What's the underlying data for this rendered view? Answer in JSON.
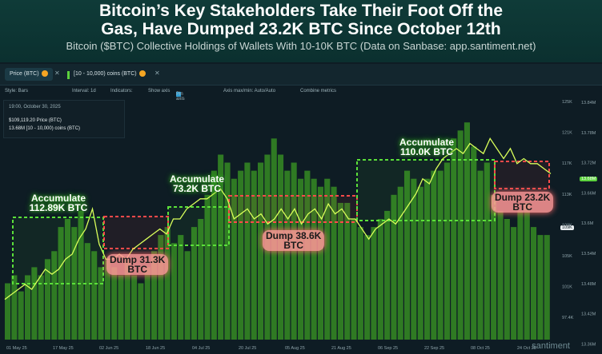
{
  "header": {
    "title_line1": "Bitcoin’s Key Stakeholders Take Their Foot Off the",
    "title_line2": "Gas, Have Dumped 23.2K BTC Since October 12th",
    "subtitle": "Bitcoin ($BTC) Collective Holdings of Wallets With 10-10K BTC (Data on Sanbase: app.santiment.net)"
  },
  "tabs": [
    {
      "label": "Price (BTC)"
    },
    {
      "label": "[10 - 10,000) coins (BTC)"
    }
  ],
  "toolbar": {
    "style": "Style: Bars",
    "interval": "Interval: 1d",
    "indicators": "Indicators:",
    "show_axis": "Show axis",
    "pin_axis": "Pin axis",
    "axis_minmax": "Axis max/min: Auto/Auto",
    "combine": "Combine metrics"
  },
  "infobox": {
    "date": "19:00, October 30, 2025",
    "price": "$109,119.20 Price (BTC)",
    "holdings": "13.68M [10 - 10,000) coins (BTC)"
  },
  "annotations": {
    "acc1": [
      "Accumulate",
      "112.89K BTC"
    ],
    "dump1": [
      "Dump 31.3K",
      "BTC"
    ],
    "acc2": [
      "Accumulate",
      "73.2K BTC"
    ],
    "dump2": [
      "Dump 38.6K",
      "BTC"
    ],
    "acc3": [
      "Accumulate",
      "110.0K BTC"
    ],
    "dump3": [
      "Dump 23.2K",
      "BTC"
    ]
  },
  "watermark": "santiment",
  "colors": {
    "bars": "#2f7a23",
    "line": "#d9ff5a",
    "accumulate_box": "#5be03a",
    "dump_box": "#ff4a4a",
    "holdings_badge": "#5bd13d",
    "price_badge": "#e8edef"
  },
  "chart_data": {
    "type": "bar",
    "x_ticks": [
      "01 May 25",
      "17 May 25",
      "02 Jun 25",
      "18 Jun 25",
      "04 Jul 25",
      "20 Jul 25",
      "05 Aug 25",
      "21 Aug 25",
      "06 Sep 25",
      "22 Sep 25",
      "08 Oct 25",
      "24 Oct 25"
    ],
    "left_ticks": [
      "125K",
      "121K",
      "117K",
      "113K",
      "109K",
      "105K",
      "101K",
      "97.4K"
    ],
    "right_ticks": [
      "13.84M",
      "13.78M",
      "13.72M",
      "13.66M",
      "13.6M",
      "13.54M",
      "13.48M",
      "13.42M",
      "13.36M"
    ],
    "price_badge": "109K",
    "holdings_badge": "13.68M",
    "holdings_line": [
      13.44,
      13.45,
      13.46,
      13.47,
      13.46,
      13.48,
      13.5,
      13.49,
      13.5,
      13.52,
      13.53,
      13.56,
      13.58,
      13.62,
      13.55,
      13.52,
      13.52,
      13.53,
      13.52,
      13.54,
      13.55,
      13.56,
      13.57,
      13.58,
      13.57,
      13.6,
      13.6,
      13.62,
      13.63,
      13.64,
      13.64,
      13.65,
      13.66,
      13.64,
      13.6,
      13.61,
      13.62,
      13.6,
      13.61,
      13.59,
      13.6,
      13.62,
      13.6,
      13.62,
      13.59,
      13.61,
      13.62,
      13.6,
      13.63,
      13.61,
      13.62,
      13.6,
      13.6,
      13.58,
      13.56,
      13.58,
      13.59,
      13.6,
      13.59,
      13.61,
      13.63,
      13.65,
      13.68,
      13.67,
      13.7,
      13.72,
      13.73,
      13.74,
      13.73,
      13.75,
      13.74,
      13.73,
      13.76,
      13.74,
      13.72,
      13.74,
      13.71,
      13.72,
      13.71,
      13.71,
      13.7,
      13.69
    ],
    "bar_values": [
      103,
      104,
      102,
      104,
      105,
      104,
      106,
      107,
      110,
      111,
      110,
      112,
      108,
      107,
      105,
      106,
      105,
      104,
      106,
      104,
      103,
      105,
      107,
      109,
      110,
      108,
      109,
      107,
      110,
      111,
      114,
      117,
      119,
      118,
      116,
      117,
      118,
      117,
      118,
      119,
      121,
      119,
      117,
      118,
      116,
      117,
      116,
      115,
      116,
      115,
      113,
      113,
      111,
      110,
      109,
      110,
      111,
      112,
      114,
      115,
      117,
      116,
      115,
      116,
      117,
      117,
      118,
      121,
      122,
      123,
      120,
      117,
      118,
      114,
      112,
      111,
      110,
      112,
      113,
      110,
      109,
      109
    ]
  }
}
